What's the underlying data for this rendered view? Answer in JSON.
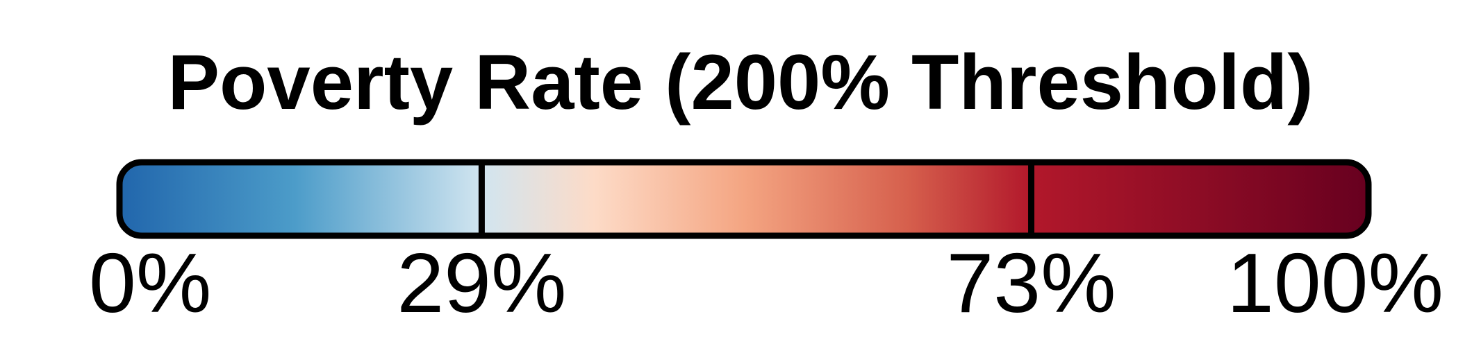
{
  "chart_data": {
    "type": "color-legend",
    "title": "Poverty Rate (200% Threshold)",
    "range": [
      0,
      100
    ],
    "unit": "%",
    "ticks": [
      {
        "value": 0,
        "label": "0%"
      },
      {
        "value": 29,
        "label": "29%"
      },
      {
        "value": 73,
        "label": "73%"
      },
      {
        "value": 100,
        "label": "100%"
      }
    ],
    "breakpoints": [
      29,
      73
    ],
    "gradient_stops": [
      {
        "value": 0,
        "color": "#2166ac"
      },
      {
        "value": 14,
        "color": "#4c9cc9"
      },
      {
        "value": 29,
        "color": "#d1e5f0"
      },
      {
        "value": 38,
        "color": "#fddbc7"
      },
      {
        "value": 50,
        "color": "#f4a582"
      },
      {
        "value": 63,
        "color": "#d6604d"
      },
      {
        "value": 73,
        "color": "#b2182b"
      },
      {
        "value": 100,
        "color": "#67001f"
      }
    ],
    "outline_color": "#000000"
  }
}
